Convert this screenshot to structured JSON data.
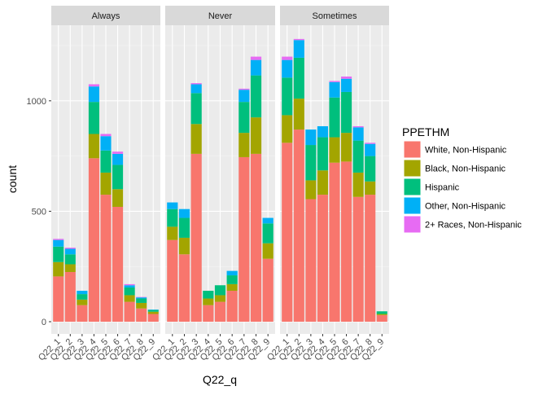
{
  "chart_data": {
    "type": "bar",
    "stacked": true,
    "facets": [
      "Always",
      "Never",
      "Sometimes"
    ],
    "categories": [
      "Q22_1",
      "Q22_2",
      "Q22_3",
      "Q22_4",
      "Q22_5",
      "Q22_6",
      "Q22_7",
      "Q22_8",
      "Q22_9"
    ],
    "xlabel": "Q22_q",
    "ylabel": "count",
    "ylim": [
      0,
      1300
    ],
    "yticks": [
      0,
      500,
      1000
    ],
    "grid": true,
    "legend": {
      "title": "PPETHM",
      "placement": "right"
    },
    "series": [
      {
        "name": "White, Non-Hispanic",
        "color": "#F8766D",
        "values": {
          "Always": [
            205,
            225,
            75,
            740,
            575,
            520,
            90,
            60,
            35
          ],
          "Never": [
            370,
            305,
            760,
            75,
            90,
            140,
            745,
            760,
            285
          ],
          "Sometimes": [
            810,
            870,
            555,
            575,
            720,
            725,
            565,
            575,
            30
          ]
        }
      },
      {
        "name": "Black, Non-Hispanic",
        "color": "#A3A500",
        "values": {
          "Always": [
            65,
            35,
            25,
            110,
            100,
            80,
            30,
            25,
            10
          ],
          "Never": [
            60,
            75,
            135,
            30,
            30,
            30,
            110,
            165,
            70
          ],
          "Sometimes": [
            125,
            140,
            85,
            110,
            115,
            130,
            110,
            60,
            5
          ]
        }
      },
      {
        "name": "Hispanic",
        "color": "#00BF7D",
        "values": {
          "Always": [
            70,
            45,
            25,
            145,
            100,
            110,
            35,
            20,
            8
          ],
          "Never": [
            80,
            90,
            140,
            35,
            45,
            40,
            140,
            190,
            90
          ],
          "Sometimes": [
            170,
            185,
            160,
            150,
            180,
            185,
            145,
            115,
            12
          ]
        }
      },
      {
        "name": "Other, Non-Hispanic",
        "color": "#00B0F6",
        "values": {
          "Always": [
            30,
            25,
            15,
            70,
            65,
            50,
            10,
            5,
            2
          ],
          "Never": [
            30,
            40,
            40,
            0,
            0,
            20,
            55,
            70,
            25
          ],
          "Sometimes": [
            80,
            80,
            70,
            50,
            70,
            60,
            60,
            55,
            0
          ]
        }
      },
      {
        "name": "2+ Races, Non-Hispanic",
        "color": "#E76BF3",
        "values": {
          "Always": [
            5,
            5,
            0,
            10,
            10,
            10,
            5,
            2,
            0
          ],
          "Never": [
            0,
            0,
            5,
            0,
            0,
            0,
            5,
            15,
            0
          ],
          "Sometimes": [
            15,
            5,
            0,
            0,
            5,
            10,
            5,
            5,
            0
          ]
        }
      }
    ]
  }
}
